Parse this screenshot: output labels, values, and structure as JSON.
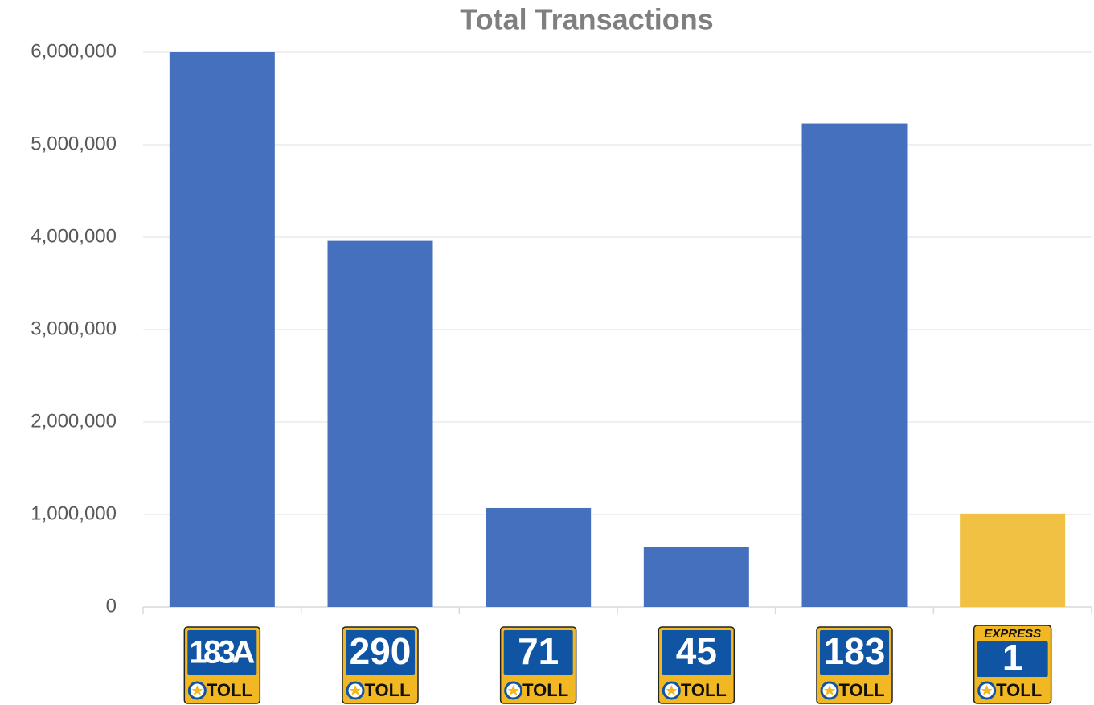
{
  "chart_data": {
    "type": "bar",
    "title": "Total Transactions",
    "categories": [
      "183A",
      "290",
      "71",
      "45",
      "183",
      "1"
    ],
    "shield_label": "TOLL",
    "shield_banners": [
      null,
      null,
      null,
      null,
      null,
      "EXPRESS"
    ],
    "values": [
      6000000,
      3960000,
      1070000,
      650000,
      5230000,
      1010000
    ],
    "colors": [
      "#4570be",
      "#4570be",
      "#4570be",
      "#4570be",
      "#4570be",
      "#f0c142"
    ],
    "ylim": [
      0,
      6000000
    ],
    "yticks": [
      0,
      {
        "value": 1000000,
        "label": "1,000,000"
      },
      {
        "value": 2000000,
        "label": "2,000,000"
      },
      {
        "value": 3000000,
        "label": "3,000,000"
      },
      {
        "value": 4000000,
        "label": "4,000,000"
      },
      {
        "value": 5000000,
        "label": "5,000,000"
      },
      {
        "value": 6000000,
        "label": "6,000,000"
      }
    ],
    "grid": true
  }
}
